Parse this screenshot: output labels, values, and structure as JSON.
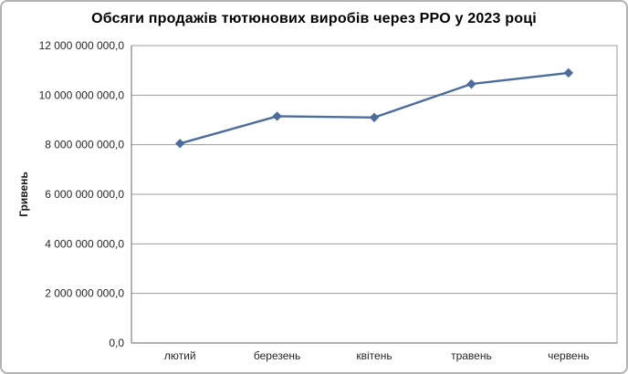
{
  "chart_data": {
    "type": "line",
    "title": "Обсяги продажів тютюнових виробів через РРО у 2023 році",
    "ylabel": "Гривень",
    "xlabel": "",
    "categories": [
      "лютий",
      "березень",
      "квітень",
      "травень",
      "червень"
    ],
    "values": [
      8050000000,
      9150000000,
      9100000000,
      10450000000,
      10900000000
    ],
    "ylim": [
      0,
      12000000000
    ],
    "y_ticks": [
      0,
      2000000000,
      4000000000,
      6000000000,
      8000000000,
      10000000000,
      12000000000
    ],
    "y_tick_labels": [
      "0,0",
      "2 000 000 000,0",
      "4 000 000 000,0",
      "6 000 000 000,0",
      "8 000 000 000,0",
      "10 000 000 000,0",
      "12 000 000 000,0"
    ],
    "grid": "horizontal",
    "legend": "none",
    "marker": "diamond",
    "colors": {
      "line": "#4a6d9e",
      "marker": "#4a6d9e",
      "gridline": "#9b9b9b",
      "axis": "#808080",
      "plot_border": "#9b9b9b",
      "tick_text": "#262626",
      "outer_border": "#b3b3b3",
      "background": "#ffffff"
    }
  }
}
